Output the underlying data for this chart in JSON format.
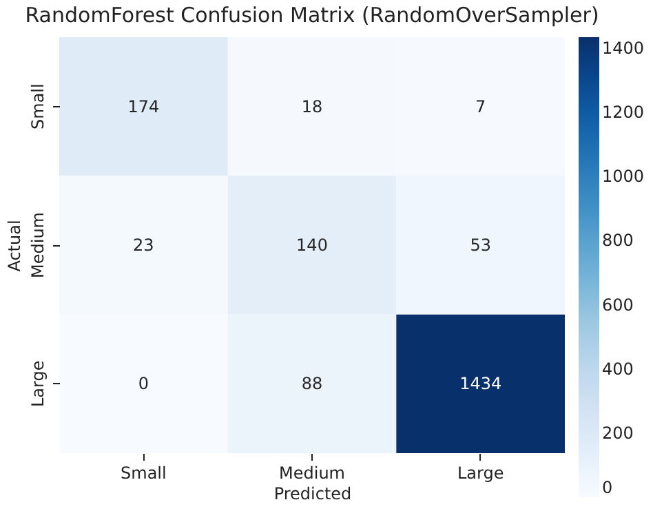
{
  "chart_data": {
    "type": "heatmap",
    "title": "RandomForest Confusion Matrix (RandomOverSampler)",
    "xlabel": "Predicted",
    "ylabel": "Actual",
    "categories": [
      "Small",
      "Medium",
      "Large"
    ],
    "y_categories": [
      "Small",
      "Medium",
      "Large"
    ],
    "cells": [
      [
        174,
        18,
        7
      ],
      [
        23,
        140,
        53
      ],
      [
        0,
        88,
        1434
      ]
    ],
    "data_labels": true,
    "clim": [
      0,
      1434
    ],
    "cticks": [
      0,
      200,
      400,
      600,
      800,
      1000,
      1200,
      1400
    ]
  }
}
